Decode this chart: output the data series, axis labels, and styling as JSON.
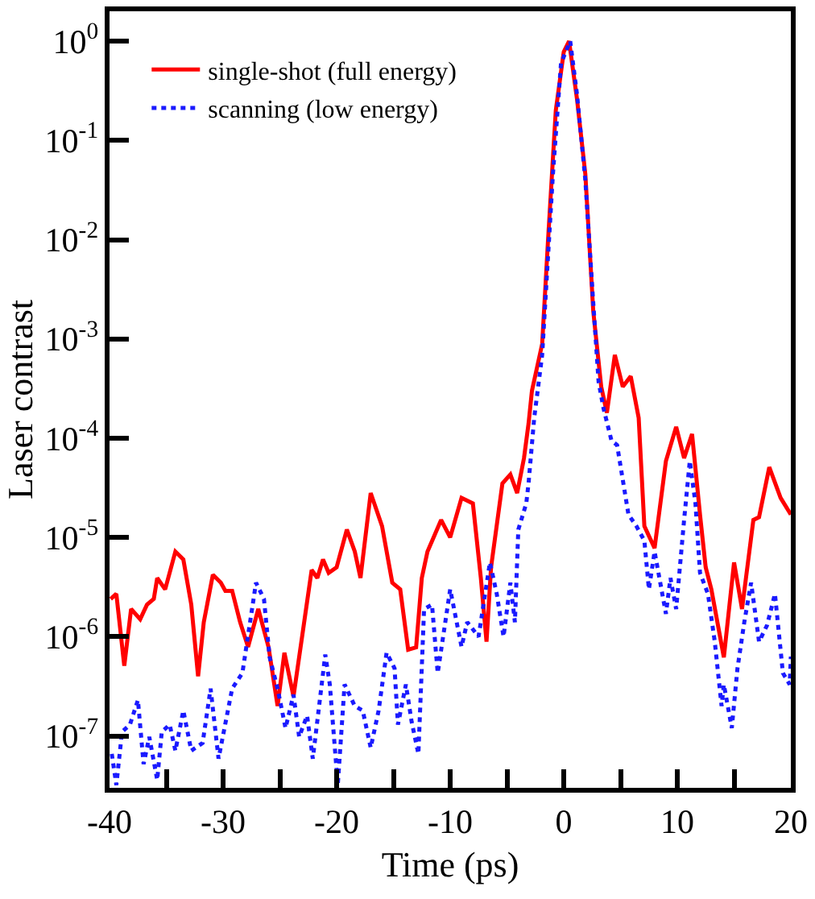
{
  "chart_data": {
    "type": "line",
    "xlabel": "Time (ps)",
    "ylabel": "Laser contrast",
    "log": "y",
    "grid": false,
    "legend": "top left",
    "marker": "none",
    "xlim": [
      -40,
      20
    ],
    "xticks": [
      -40,
      {
        "value": -35,
        "label": null
      },
      -30,
      {
        "value": -25,
        "label": null
      },
      -20,
      {
        "value": -15,
        "label": null
      },
      -10,
      {
        "value": -5,
        "label": null
      },
      0,
      {
        "value": 5,
        "label": null
      },
      10,
      {
        "value": 15,
        "label": null
      },
      20
    ],
    "ylim": [
      3e-08,
      2
    ],
    "yticks": [
      {
        "value": 1e-07,
        "label": "10$^{-7}$"
      },
      {
        "value": 1e-06,
        "label": "10$^{-6}$"
      },
      {
        "value": 1e-05,
        "label": "10$^{-5}$"
      },
      {
        "value": 0.0001,
        "label": "10$^{-4}$"
      },
      {
        "value": 0.001,
        "label": "10$^{-3}$"
      },
      {
        "value": 0.01,
        "label": "10$^{-2}$"
      },
      {
        "value": 0.1,
        "label": "10$^{-1}$"
      },
      {
        "value": 1,
        "label": "10$^{0}$"
      }
    ],
    "series": [
      {
        "name": "single-shot (full energy)",
        "color": "#ff0000",
        "line_style": "solid",
        "x": [
          -39.9,
          -39.4,
          -38.7,
          -38.1,
          -37.3,
          -36.7,
          -36.1,
          -35.8,
          -35.1,
          -34.2,
          -33.5,
          -32.8,
          -32.2,
          -31.7,
          -30.9,
          -30.2,
          -29.8,
          -29.2,
          -28.5,
          -27.8,
          -26.9,
          -26.0,
          -25.2,
          -24.6,
          -23.8,
          -22.9,
          -22.2,
          -21.7,
          -21.2,
          -20.7,
          -20.0,
          -19.1,
          -18.4,
          -17.9,
          -17.0,
          -16.0,
          -15.1,
          -14.4,
          -13.7,
          -13.0,
          -12.5,
          -12.0,
          -10.8,
          -10.0,
          -9.0,
          -8.0,
          -7.3,
          -6.8,
          -6.4,
          -5.4,
          -4.7,
          -4.1,
          -3.5,
          -3.1,
          -2.8,
          -1.9,
          -1.4,
          -0.7,
          0,
          0.47,
          1.17,
          1.9,
          2.6,
          3.3,
          3.8,
          4.5,
          5.2,
          5.9,
          6.6,
          7.1,
          8.0,
          9.0,
          9.9,
          10.6,
          11.3,
          12.0,
          12.5,
          13.0,
          14.1,
          15.0,
          15.7,
          16.7,
          17.2,
          18.1,
          19.1,
          20
        ],
        "values": [
          2.4e-06,
          2.7e-06,
          5.1e-07,
          1.9e-06,
          1.5e-06,
          2.1e-06,
          2.4e-06,
          3.9e-06,
          3e-06,
          7.2e-06,
          6e-06,
          2.1e-06,
          4e-07,
          1.4e-06,
          4.2e-06,
          3.5e-06,
          2.9e-06,
          2.9e-06,
          1.4e-06,
          7.9e-07,
          1.9e-06,
          7.9e-07,
          2e-07,
          6.9e-07,
          2.5e-07,
          1.3e-06,
          4.7e-06,
          3.9e-06,
          6e-06,
          4.4e-06,
          5e-06,
          1.2e-05,
          7.2e-06,
          3.9e-06,
          2.8e-05,
          1.3e-05,
          3.5e-06,
          3e-06,
          7.4e-07,
          7.8e-07,
          3.9e-06,
          7.2e-06,
          1.5e-05,
          1e-05,
          2.5e-05,
          2.2e-05,
          3.9e-06,
          8.9e-07,
          5e-06,
          3.5e-05,
          4.3e-05,
          2.8e-05,
          6.3e-05,
          0.00014,
          0.0003,
          0.00089,
          0.0091,
          0.2,
          0.78,
          1,
          0.26,
          0.046,
          0.0019,
          0.00033,
          0.00018,
          0.00069,
          0.00033,
          0.00042,
          0.00016,
          1.3e-05,
          7.8e-06,
          5.9e-05,
          0.00013,
          6.3e-05,
          0.00011,
          1.7e-05,
          5e-06,
          3e-06,
          6.2e-07,
          5.6e-06,
          1.9e-06,
          1.5e-05,
          1.6e-05,
          5.1e-05,
          2.5e-05,
          1.7e-05
        ]
      },
      {
        "name": "scanning (low energy)",
        "color": "#1a1aff",
        "line_style": "dotted",
        "x": [
          -39.8,
          -39.4,
          -38.9,
          -38.2,
          -37.5,
          -37.0,
          -36.5,
          -35.8,
          -35.4,
          -34.7,
          -34.2,
          -33.5,
          -32.8,
          -31.8,
          -31.1,
          -30.4,
          -29.2,
          -28.3,
          -27.1,
          -26.4,
          -25.9,
          -25.2,
          -24.5,
          -23.8,
          -23.3,
          -22.6,
          -22.1,
          -21.0,
          -20.6,
          -19.9,
          -19.3,
          -18.4,
          -17.7,
          -17.0,
          -16.3,
          -15.6,
          -14.9,
          -14.6,
          -13.9,
          -13.4,
          -12.8,
          -12.3,
          -11.6,
          -11.1,
          -10.0,
          -9.0,
          -8.5,
          -7.5,
          -6.5,
          -5.9,
          -5.3,
          -4.7,
          -4.3,
          -4.0,
          -3.3,
          -3.1,
          -2.6,
          -1.9,
          -0.95,
          -0.24,
          0.57,
          1.17,
          1.9,
          2.6,
          3.07,
          3.5,
          4.2,
          4.7,
          5.7,
          6.4,
          7.1,
          7.5,
          8.0,
          9.0,
          9.4,
          9.9,
          10.6,
          11.1,
          11.6,
          12.0,
          12.7,
          13.3,
          13.9,
          14.1,
          14.8,
          15.3,
          15.9,
          16.5,
          17.2,
          17.9,
          18.6,
          19.3,
          19.9,
          20
        ],
        "values": [
          6.6e-08,
          3.2e-08,
          1.1e-07,
          1.3e-07,
          2.3e-07,
          5.2e-08,
          9.8e-08,
          3.6e-08,
          1.1e-07,
          1.3e-07,
          7.1e-08,
          1.8e-07,
          7.1e-08,
          8.5e-08,
          3e-07,
          5.9e-08,
          3e-07,
          4.3e-07,
          3.5e-06,
          2.4e-06,
          6.2e-07,
          3e-07,
          1.2e-07,
          2.6e-07,
          9.8e-08,
          1.6e-07,
          5.9e-08,
          6.6e-07,
          3.3e-07,
          3.2e-08,
          3.3e-07,
          2e-07,
          1.8e-07,
          7.6e-08,
          1.8e-07,
          6.9e-07,
          4.8e-07,
          1.3e-07,
          3.3e-07,
          1.4e-07,
          6.6e-08,
          1.9e-06,
          2.1e-06,
          4.3e-07,
          3e-06,
          7.9e-07,
          1.4e-06,
          1e-06,
          5.6e-06,
          2.7e-06,
          1e-06,
          3.5e-06,
          1.4e-06,
          1.2e-05,
          2.2e-05,
          3.5e-05,
          0.00016,
          0.00069,
          0.046,
          0.6,
          1,
          0.29,
          0.04,
          0.0023,
          0.00037,
          0.0002,
          9.5e-05,
          8.5e-05,
          1.7e-05,
          1.3e-05,
          9.3e-06,
          3e-06,
          7.2e-06,
          1.7e-06,
          3.9e-06,
          1.9e-06,
          1.5e-05,
          5.9e-05,
          2.2e-05,
          4.4e-06,
          2.7e-06,
          8.9e-07,
          2e-07,
          3.3e-07,
          1.2e-07,
          4.8e-07,
          1.4e-06,
          3.5e-06,
          8.9e-07,
          1.3e-06,
          2.7e-06,
          4.3e-07,
          3.3e-07,
          6.3e-07
        ]
      }
    ]
  }
}
